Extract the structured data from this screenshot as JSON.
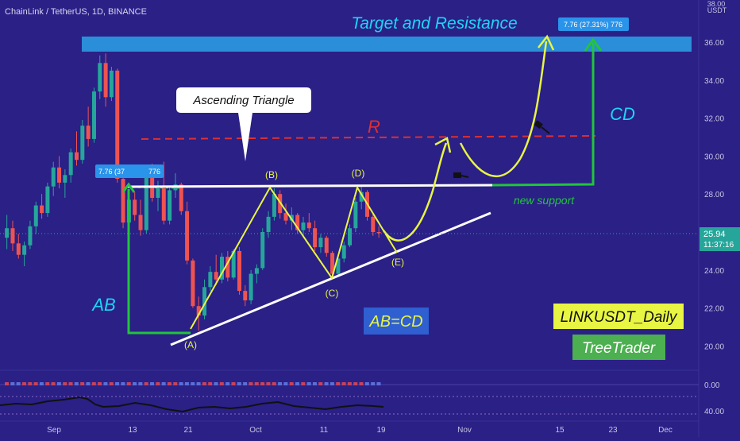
{
  "header": {
    "symbol_line": "ChainLink / TetherUS, 1D, BINANCE"
  },
  "axis": {
    "quote_currency": "USDT",
    "price_ticks": [
      "36.00",
      "34.00",
      "32.00",
      "30.00",
      "28.00",
      "24.00",
      "22.00",
      "20.00"
    ],
    "top_partial_tick": "38.00",
    "date_ticks": [
      "Sep",
      "13",
      "21",
      "Oct",
      "11",
      "19",
      "Nov",
      "15",
      "23",
      "Dec"
    ],
    "current_price": "25.94",
    "countdown": "11:37:16",
    "indicator_ticks": [
      "0.00",
      "40.00"
    ]
  },
  "annotations": {
    "title_label": "Target and Resistance",
    "pattern_label": "Ascending Triangle",
    "resistance_label": "R",
    "point_b": "(B)",
    "point_d": "(D)",
    "point_a": "(A)",
    "point_c": "(C)",
    "point_e": "(E)",
    "ab_label": "AB",
    "cd_label": "CD",
    "abcd_label": "AB=CD",
    "support_label": "new support",
    "symbol_box": "LINKUSDT_Daily",
    "author_box": "TreeTrader",
    "measure_top": "7.76 (27.31%) 776",
    "measure_left": "7.76 (37",
    "measure_left_tail": "776"
  },
  "colors": {
    "background": "#2a2086",
    "up": "#26a69a",
    "down": "#ef5350",
    "resistance": "#e02f2f",
    "projection": "#e8f542",
    "support": "#22c53b",
    "label_cyan": "#1fd5f5",
    "target_zone": "#2ca2e6"
  },
  "chart_data": {
    "type": "candlestick",
    "title": "ChainLink / TetherUS, 1D, BINANCE",
    "x": [
      "Sep",
      "13",
      "21",
      "Oct",
      "11",
      "19",
      "Nov",
      "15",
      "23",
      "Dec"
    ],
    "ylabel": "USDT",
    "ylim": [
      19,
      38.5
    ],
    "current_price": 25.94,
    "series": [
      {
        "name": "candles",
        "values": [
          [
            25.7,
            26.9,
            25.1,
            26.2
          ],
          [
            26.2,
            26.6,
            25.0,
            25.4
          ],
          [
            25.4,
            25.9,
            24.6,
            24.8
          ],
          [
            24.8,
            25.5,
            24.2,
            25.3
          ],
          [
            25.3,
            26.6,
            25.1,
            26.3
          ],
          [
            26.3,
            27.6,
            25.9,
            27.4
          ],
          [
            27.4,
            28.0,
            26.7,
            27.0
          ],
          [
            27.0,
            28.6,
            26.8,
            28.4
          ],
          [
            28.4,
            29.7,
            27.9,
            29.4
          ],
          [
            29.4,
            30.0,
            28.3,
            28.6
          ],
          [
            28.6,
            29.3,
            27.8,
            29.0
          ],
          [
            29.0,
            30.4,
            28.6,
            30.2
          ],
          [
            30.2,
            31.3,
            29.5,
            29.8
          ],
          [
            29.8,
            31.9,
            29.6,
            31.6
          ],
          [
            31.6,
            32.6,
            30.5,
            30.9
          ],
          [
            30.9,
            33.6,
            30.7,
            33.4
          ],
          [
            33.4,
            35.3,
            33.0,
            34.9
          ],
          [
            34.9,
            35.4,
            32.6,
            33.1
          ],
          [
            33.1,
            34.7,
            32.9,
            34.5
          ],
          [
            34.5,
            34.6,
            28.6,
            28.8
          ],
          [
            28.8,
            29.1,
            26.2,
            26.5
          ],
          [
            26.5,
            27.9,
            26.3,
            27.7
          ],
          [
            27.7,
            28.1,
            26.6,
            26.9
          ],
          [
            26.9,
            27.7,
            25.8,
            26.1
          ],
          [
            26.1,
            29.3,
            25.9,
            29.0
          ],
          [
            29.0,
            29.6,
            27.6,
            27.8
          ],
          [
            27.8,
            28.7,
            27.1,
            28.3
          ],
          [
            28.3,
            29.7,
            26.4,
            26.6
          ],
          [
            26.6,
            28.4,
            26.4,
            28.2
          ],
          [
            28.2,
            29.1,
            27.8,
            28.5
          ],
          [
            28.5,
            28.6,
            26.9,
            27.1
          ],
          [
            27.1,
            27.6,
            24.3,
            24.5
          ],
          [
            24.5,
            24.6,
            22.0,
            22.1
          ],
          [
            22.1,
            22.6,
            20.8,
            21.6
          ],
          [
            21.6,
            23.5,
            21.4,
            23.1
          ],
          [
            23.1,
            24.2,
            22.9,
            23.9
          ],
          [
            23.9,
            24.8,
            23.2,
            23.5
          ],
          [
            23.5,
            24.9,
            23.3,
            24.7
          ],
          [
            24.7,
            25.0,
            23.4,
            23.6
          ],
          [
            23.6,
            25.1,
            23.5,
            25.0
          ],
          [
            25.0,
            25.2,
            22.7,
            22.9
          ],
          [
            22.9,
            23.2,
            22.1,
            22.4
          ],
          [
            22.4,
            24.0,
            22.2,
            23.8
          ],
          [
            23.8,
            24.3,
            23.3,
            24.1
          ],
          [
            24.1,
            26.2,
            24.0,
            26.0
          ],
          [
            26.0,
            27.1,
            25.7,
            26.8
          ],
          [
            26.8,
            28.3,
            26.6,
            28.0
          ],
          [
            28.0,
            28.2,
            26.7,
            27.0
          ],
          [
            27.0,
            27.5,
            26.4,
            26.6
          ],
          [
            26.6,
            27.3,
            26.1,
            26.9
          ],
          [
            26.9,
            27.0,
            25.9,
            26.1
          ],
          [
            26.1,
            26.8,
            25.7,
            26.5
          ],
          [
            26.5,
            27.0,
            26.0,
            26.2
          ],
          [
            26.2,
            26.6,
            25.0,
            25.2
          ],
          [
            25.2,
            25.9,
            24.9,
            25.7
          ],
          [
            25.7,
            25.8,
            24.7,
            24.9
          ],
          [
            24.9,
            25.0,
            23.6,
            23.8
          ],
          [
            23.8,
            24.8,
            23.7,
            24.6
          ],
          [
            24.6,
            25.5,
            24.4,
            25.3
          ],
          [
            25.3,
            26.4,
            25.2,
            26.2
          ],
          [
            26.2,
            27.8,
            26.0,
            27.6
          ],
          [
            27.6,
            28.4,
            27.2,
            28.1
          ],
          [
            28.1,
            28.2,
            26.6,
            26.8
          ],
          [
            26.8,
            27.0,
            25.8,
            26.0
          ],
          [
            26.0,
            26.3,
            25.7,
            25.94
          ]
        ]
      }
    ],
    "target_zone": [
      35.6,
      36.4
    ],
    "resistance_level": 31.1,
    "triangle_top": 28.4,
    "new_support": 28.4
  }
}
